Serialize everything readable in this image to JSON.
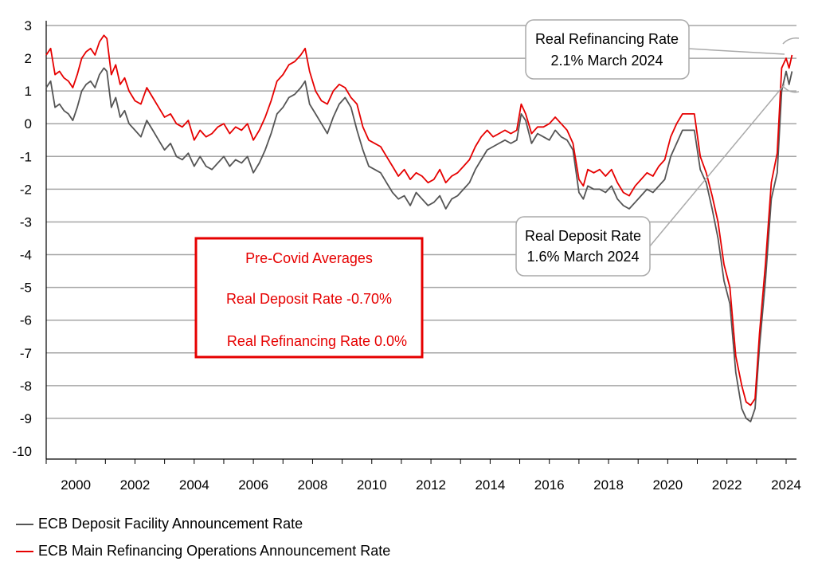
{
  "chart_data": {
    "type": "line",
    "title": "",
    "xlabel": "",
    "ylabel": "",
    "xlim": [
      1999.0,
      2024.35
    ],
    "ylim": [
      -10,
      3
    ],
    "grid": true,
    "x_ticks": [
      2000,
      2002,
      2004,
      2006,
      2008,
      2010,
      2012,
      2014,
      2016,
      2018,
      2020,
      2022,
      2024
    ],
    "y_ticks": [
      3,
      2,
      1,
      0,
      -1,
      -2,
      -3,
      -4,
      -5,
      -6,
      -7,
      -8,
      -9,
      -10
    ],
    "legend_position": "bottom-left",
    "series": [
      {
        "name": "ECB Deposit Facility Announcement Rate",
        "color": "#555555",
        "x": [
          1999.0,
          1999.15,
          1999.3,
          1999.45,
          1999.6,
          1999.75,
          1999.9,
          2000.05,
          2000.2,
          2000.35,
          2000.5,
          2000.65,
          2000.8,
          2000.95,
          2001.05,
          2001.2,
          2001.35,
          2001.5,
          2001.65,
          2001.8,
          2002.0,
          2002.2,
          2002.4,
          2002.6,
          2002.8,
          2003.0,
          2003.2,
          2003.4,
          2003.6,
          2003.8,
          2004.0,
          2004.2,
          2004.4,
          2004.6,
          2004.8,
          2005.0,
          2005.2,
          2005.4,
          2005.6,
          2005.8,
          2006.0,
          2006.2,
          2006.4,
          2006.6,
          2006.8,
          2007.0,
          2007.2,
          2007.4,
          2007.6,
          2007.75,
          2007.9,
          2008.1,
          2008.3,
          2008.5,
          2008.7,
          2008.9,
          2009.1,
          2009.3,
          2009.5,
          2009.7,
          2009.9,
          2010.1,
          2010.3,
          2010.5,
          2010.7,
          2010.9,
          2011.1,
          2011.3,
          2011.5,
          2011.7,
          2011.9,
          2012.1,
          2012.3,
          2012.5,
          2012.7,
          2012.9,
          2013.1,
          2013.3,
          2013.5,
          2013.7,
          2013.9,
          2014.1,
          2014.3,
          2014.5,
          2014.7,
          2014.9,
          2015.05,
          2015.2,
          2015.4,
          2015.6,
          2015.8,
          2016.0,
          2016.2,
          2016.4,
          2016.6,
          2016.8,
          2017.0,
          2017.15,
          2017.3,
          2017.5,
          2017.7,
          2017.9,
          2018.1,
          2018.3,
          2018.5,
          2018.7,
          2018.9,
          2019.1,
          2019.3,
          2019.5,
          2019.7,
          2019.9,
          2020.1,
          2020.3,
          2020.5,
          2020.7,
          2020.9,
          2021.1,
          2021.3,
          2021.5,
          2021.7,
          2021.9,
          2022.1,
          2022.3,
          2022.5,
          2022.65,
          2022.8,
          2022.95,
          2023.1,
          2023.3,
          2023.5,
          2023.7,
          2023.85,
          2024.0,
          2024.1,
          2024.2
        ],
        "values": [
          1.1,
          1.3,
          0.5,
          0.6,
          0.4,
          0.3,
          0.1,
          0.5,
          1.0,
          1.2,
          1.3,
          1.1,
          1.5,
          1.7,
          1.6,
          0.5,
          0.8,
          0.2,
          0.4,
          0.0,
          -0.2,
          -0.4,
          0.1,
          -0.2,
          -0.5,
          -0.8,
          -0.6,
          -1.0,
          -1.1,
          -0.9,
          -1.3,
          -1.0,
          -1.3,
          -1.4,
          -1.2,
          -1.0,
          -1.3,
          -1.1,
          -1.2,
          -1.0,
          -1.5,
          -1.2,
          -0.8,
          -0.3,
          0.3,
          0.5,
          0.8,
          0.9,
          1.1,
          1.3,
          0.6,
          0.3,
          0.0,
          -0.3,
          0.2,
          0.6,
          0.8,
          0.5,
          -0.2,
          -0.8,
          -1.3,
          -1.4,
          -1.5,
          -1.8,
          -2.1,
          -2.3,
          -2.2,
          -2.5,
          -2.1,
          -2.3,
          -2.5,
          -2.4,
          -2.2,
          -2.6,
          -2.3,
          -2.2,
          -2.0,
          -1.8,
          -1.4,
          -1.1,
          -0.8,
          -0.7,
          -0.6,
          -0.5,
          -0.6,
          -0.5,
          0.3,
          0.1,
          -0.6,
          -0.3,
          -0.4,
          -0.5,
          -0.2,
          -0.4,
          -0.5,
          -0.8,
          -2.1,
          -2.3,
          -1.9,
          -2.0,
          -2.0,
          -2.1,
          -1.9,
          -2.3,
          -2.5,
          -2.6,
          -2.4,
          -2.2,
          -2.0,
          -2.1,
          -1.9,
          -1.7,
          -1.0,
          -0.6,
          -0.2,
          -0.2,
          -0.2,
          -1.4,
          -1.8,
          -2.6,
          -3.5,
          -4.8,
          -5.5,
          -7.6,
          -8.7,
          -9.0,
          -9.1,
          -8.7,
          -6.8,
          -4.8,
          -2.3,
          -1.5,
          1.0,
          1.6,
          1.2,
          1.6
        ]
      },
      {
        "name": "ECB Main Refinancing Operations Announcement Rate",
        "color": "#e60000",
        "x": [
          1999.0,
          1999.15,
          1999.3,
          1999.45,
          1999.6,
          1999.75,
          1999.9,
          2000.05,
          2000.2,
          2000.35,
          2000.5,
          2000.65,
          2000.8,
          2000.95,
          2001.05,
          2001.2,
          2001.35,
          2001.5,
          2001.65,
          2001.8,
          2002.0,
          2002.2,
          2002.4,
          2002.6,
          2002.8,
          2003.0,
          2003.2,
          2003.4,
          2003.6,
          2003.8,
          2004.0,
          2004.2,
          2004.4,
          2004.6,
          2004.8,
          2005.0,
          2005.2,
          2005.4,
          2005.6,
          2005.8,
          2006.0,
          2006.2,
          2006.4,
          2006.6,
          2006.8,
          2007.0,
          2007.2,
          2007.4,
          2007.6,
          2007.75,
          2007.9,
          2008.1,
          2008.3,
          2008.5,
          2008.7,
          2008.9,
          2009.1,
          2009.3,
          2009.5,
          2009.7,
          2009.9,
          2010.1,
          2010.3,
          2010.5,
          2010.7,
          2010.9,
          2011.1,
          2011.3,
          2011.5,
          2011.7,
          2011.9,
          2012.1,
          2012.3,
          2012.5,
          2012.7,
          2012.9,
          2013.1,
          2013.3,
          2013.5,
          2013.7,
          2013.9,
          2014.1,
          2014.3,
          2014.5,
          2014.7,
          2014.9,
          2015.05,
          2015.2,
          2015.4,
          2015.6,
          2015.8,
          2016.0,
          2016.2,
          2016.4,
          2016.6,
          2016.8,
          2017.0,
          2017.15,
          2017.3,
          2017.5,
          2017.7,
          2017.9,
          2018.1,
          2018.3,
          2018.5,
          2018.7,
          2018.9,
          2019.1,
          2019.3,
          2019.5,
          2019.7,
          2019.9,
          2020.1,
          2020.3,
          2020.5,
          2020.7,
          2020.9,
          2021.1,
          2021.3,
          2021.5,
          2021.7,
          2021.9,
          2022.1,
          2022.3,
          2022.5,
          2022.65,
          2022.8,
          2022.95,
          2023.1,
          2023.3,
          2023.5,
          2023.7,
          2023.85,
          2024.0,
          2024.1,
          2024.2
        ],
        "values": [
          2.1,
          2.3,
          1.5,
          1.6,
          1.4,
          1.3,
          1.1,
          1.5,
          2.0,
          2.2,
          2.3,
          2.1,
          2.5,
          2.7,
          2.6,
          1.5,
          1.8,
          1.2,
          1.4,
          1.0,
          0.7,
          0.6,
          1.1,
          0.8,
          0.5,
          0.2,
          0.3,
          0.0,
          -0.1,
          0.1,
          -0.5,
          -0.2,
          -0.4,
          -0.3,
          -0.1,
          0.0,
          -0.3,
          -0.1,
          -0.2,
          0.0,
          -0.5,
          -0.2,
          0.2,
          0.7,
          1.3,
          1.5,
          1.8,
          1.9,
          2.1,
          2.3,
          1.6,
          1.0,
          0.7,
          0.6,
          1.0,
          1.2,
          1.1,
          0.8,
          0.6,
          -0.1,
          -0.5,
          -0.6,
          -0.7,
          -1.0,
          -1.3,
          -1.6,
          -1.4,
          -1.7,
          -1.5,
          -1.6,
          -1.8,
          -1.7,
          -1.4,
          -1.8,
          -1.6,
          -1.5,
          -1.3,
          -1.1,
          -0.7,
          -0.4,
          -0.2,
          -0.4,
          -0.3,
          -0.2,
          -0.3,
          -0.2,
          0.6,
          0.3,
          -0.3,
          -0.1,
          -0.1,
          0.0,
          0.2,
          0.0,
          -0.2,
          -0.6,
          -1.7,
          -1.9,
          -1.4,
          -1.5,
          -1.4,
          -1.6,
          -1.4,
          -1.8,
          -2.1,
          -2.2,
          -1.9,
          -1.7,
          -1.5,
          -1.6,
          -1.3,
          -1.1,
          -0.4,
          0.0,
          0.3,
          0.3,
          0.3,
          -1.0,
          -1.5,
          -2.2,
          -3.0,
          -4.3,
          -5.0,
          -7.1,
          -8.0,
          -8.5,
          -8.6,
          -8.4,
          -6.4,
          -4.3,
          -1.8,
          -0.9,
          1.7,
          2.0,
          1.7,
          2.1
        ]
      }
    ],
    "annotations": {
      "refi": {
        "line1": "Real Refinancing Rate",
        "line2": "2.1% March 2024"
      },
      "deposit": {
        "line1": "Real Deposit Rate",
        "line2": "1.6% March 2024"
      },
      "averages": {
        "title": "Pre-Covid Averages",
        "deposit": "Real Deposit Rate -0.70%",
        "refi": "Real Refinancing Rate  0.0%",
        "color": "#e60000"
      }
    }
  }
}
